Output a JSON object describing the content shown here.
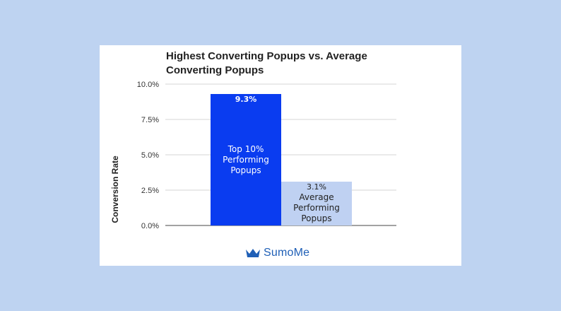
{
  "chart_data": {
    "type": "bar",
    "title_lines": [
      "Highest Converting Popups vs. Average",
      "Converting Popups"
    ],
    "xlabel": "",
    "ylabel": "Conversion Rate",
    "ylim": [
      0,
      10
    ],
    "yticks": [
      {
        "value": 0,
        "label": "0.0%"
      },
      {
        "value": 2.5,
        "label": "2.5%"
      },
      {
        "value": 5,
        "label": "5.0%"
      },
      {
        "value": 7.5,
        "label": "7.5%"
      },
      {
        "value": 10,
        "label": "10.0%"
      }
    ],
    "grid": true,
    "bars": [
      {
        "value": 9.3,
        "value_label": "9.3%",
        "category_lines": [
          "Top 10%",
          "Performing",
          "Popups"
        ],
        "color": "#0a3cf0",
        "text_color": "#ffffff"
      },
      {
        "value": 3.1,
        "value_label": "3.1%",
        "category_lines": [
          "Average",
          "Performing",
          "Popups"
        ],
        "color": "#bfd1f2",
        "text_color": "#222222"
      }
    ]
  },
  "brand": {
    "name": "SumoMe",
    "icon": "crown-icon",
    "color": "#1f5fb6"
  },
  "colors": {
    "page_background": "#bed3f1",
    "card_background": "#ffffff",
    "gridline": "#d4d4d4"
  }
}
